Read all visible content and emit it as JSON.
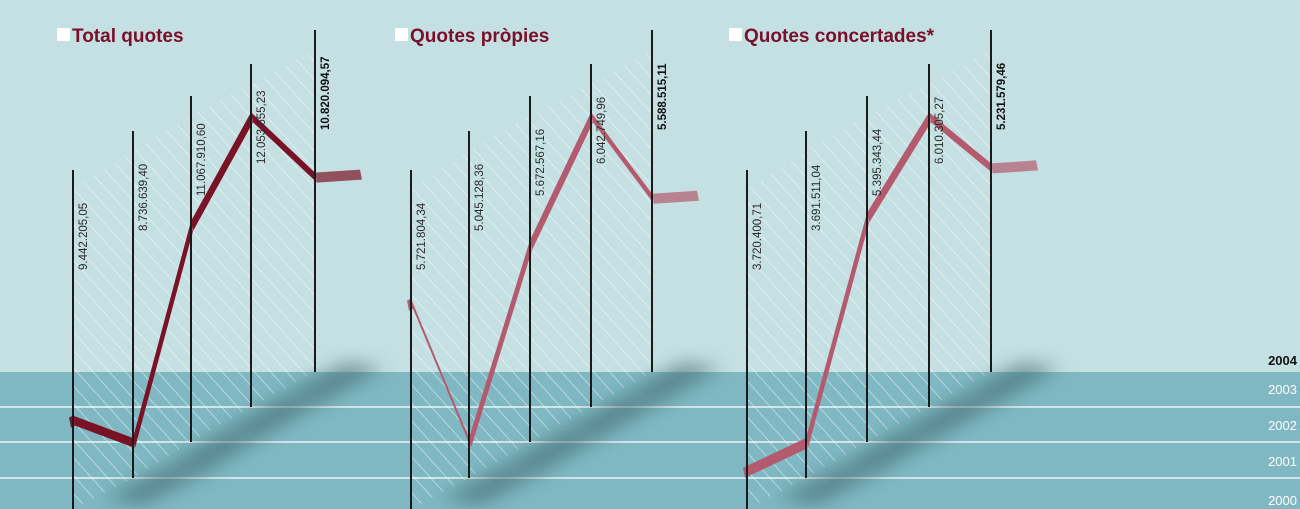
{
  "colors": {
    "background_upper": "#c4e0e2",
    "background_lower": "#7fb8c2",
    "title": "#7a0f2b",
    "total_band": "#7a1226",
    "other_bands": "#b45a6e"
  },
  "chart_data": [
    {
      "type": "line",
      "title": "Total quotes",
      "x": [
        "2000",
        "2001",
        "2002",
        "2003",
        "2004"
      ],
      "series": [
        {
          "values": [
            9442205.05,
            8736639.4,
            11067910.6,
            12053655.23,
            10820094.57
          ]
        }
      ],
      "value_labels": [
        "9.442.205,05",
        "8.736.639,40",
        "11.067.910,60",
        "12.053.655,23",
        "10.820.094,57"
      ]
    },
    {
      "type": "line",
      "title": "Quotes pròpies",
      "x": [
        "2000",
        "2001",
        "2002",
        "2003",
        "2004"
      ],
      "series": [
        {
          "values": [
            5721804.34,
            5045128.36,
            5672567.16,
            6042749.96,
            5588515.11
          ]
        }
      ],
      "value_labels": [
        "5.721.804,34",
        "5.045.128,36",
        "5.672.567,16",
        "6.042.749,96",
        "5.588.515,11"
      ]
    },
    {
      "type": "line",
      "title": "Quotes concertades*",
      "x": [
        "2000",
        "2001",
        "2002",
        "2003",
        "2004"
      ],
      "series": [
        {
          "values": [
            3720400.71,
            3691511.04,
            5395343.44,
            6010305.27,
            5231579.46
          ]
        }
      ],
      "value_labels": [
        "3.720.400,71",
        "3.691.511,04",
        "5.395.343,44",
        "6.010.305,27",
        "5.231.579,46"
      ]
    }
  ],
  "year_axis": {
    "labels": [
      "2004",
      "2003",
      "2002",
      "2001",
      "2000"
    ]
  }
}
